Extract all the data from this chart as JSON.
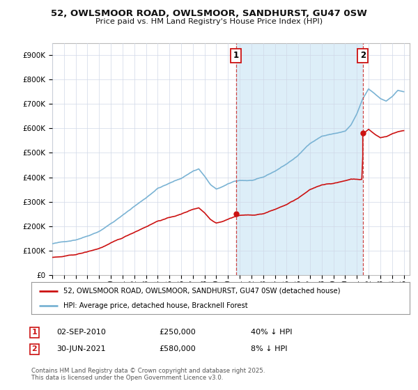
{
  "title_line1": "52, OWLSMOOR ROAD, OWLSMOOR, SANDHURST, GU47 0SW",
  "title_line2": "Price paid vs. HM Land Registry's House Price Index (HPI)",
  "background_color": "#ffffff",
  "plot_bg_color": "#ffffff",
  "hpi_color": "#7ab3d4",
  "price_color": "#cc1111",
  "shade_color": "#ddeef8",
  "dashed_color": "#cc4444",
  "annotation_box_color": "#cc1111",
  "ylim": [
    0,
    950000
  ],
  "yticks": [
    0,
    100000,
    200000,
    300000,
    400000,
    500000,
    600000,
    700000,
    800000,
    900000
  ],
  "ytick_labels": [
    "£0",
    "£100K",
    "£200K",
    "£300K",
    "£400K",
    "£500K",
    "£600K",
    "£700K",
    "£800K",
    "£900K"
  ],
  "sale1_date": "02-SEP-2010",
  "sale1_price": 250000,
  "sale1_pct": "40% ↓ HPI",
  "sale1_x": 2010.67,
  "sale2_date": "30-JUN-2021",
  "sale2_price": 580000,
  "sale2_pct": "8% ↓ HPI",
  "sale2_x": 2021.5,
  "legend_label_red": "52, OWLSMOOR ROAD, OWLSMOOR, SANDHURST, GU47 0SW (detached house)",
  "legend_label_blue": "HPI: Average price, detached house, Bracknell Forest",
  "footer": "Contains HM Land Registry data © Crown copyright and database right 2025.\nThis data is licensed under the Open Government Licence v3.0.",
  "xmin": 1995,
  "xmax": 2025.5,
  "xtick_years": [
    1995,
    1996,
    1997,
    1998,
    1999,
    2000,
    2001,
    2002,
    2003,
    2004,
    2005,
    2006,
    2007,
    2008,
    2009,
    2010,
    2011,
    2012,
    2013,
    2014,
    2015,
    2016,
    2017,
    2018,
    2019,
    2020,
    2021,
    2022,
    2023,
    2024,
    2025
  ]
}
